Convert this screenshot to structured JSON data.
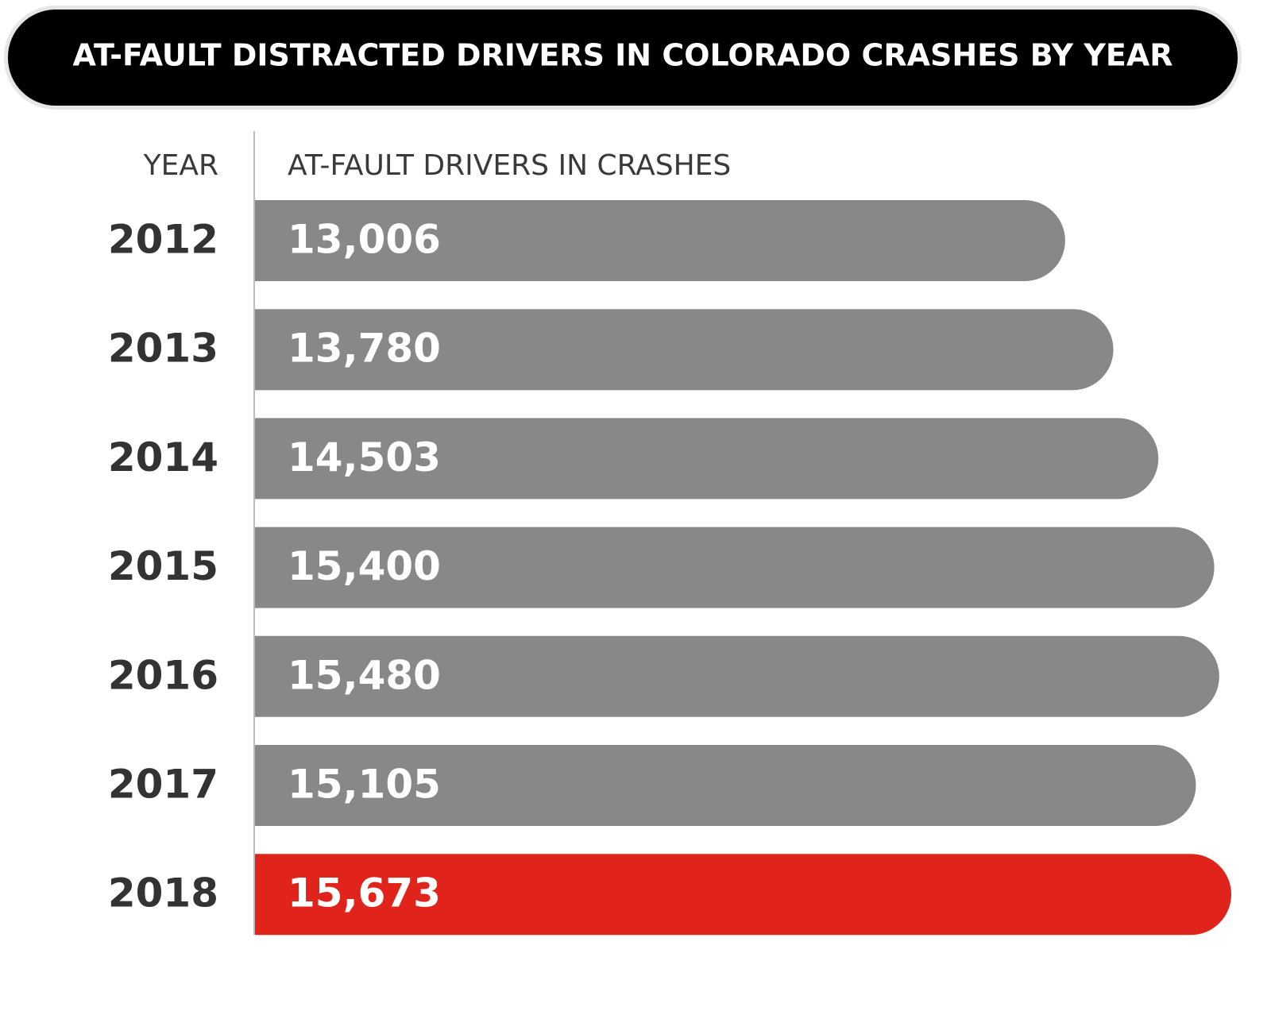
{
  "chart_data": {
    "type": "bar",
    "orientation": "horizontal",
    "title": "AT-FAULT DISTRACTED DRIVERS IN COLORADO CRASHES BY YEAR",
    "category_header": "YEAR",
    "value_header": "AT-FAULT DRIVERS IN CRASHES",
    "categories": [
      "2012",
      "2013",
      "2014",
      "2015",
      "2016",
      "2017",
      "2018"
    ],
    "values": [
      13006,
      13780,
      14503,
      15400,
      15480,
      15105,
      15673
    ],
    "value_labels": [
      "13,006",
      "13,780",
      "14,503",
      "15,400",
      "15,480",
      "15,105",
      "15,673"
    ],
    "colors": [
      "#888986",
      "#888986",
      "#888986",
      "#888986",
      "#888986",
      "#888986",
      "#e0241c"
    ]
  }
}
